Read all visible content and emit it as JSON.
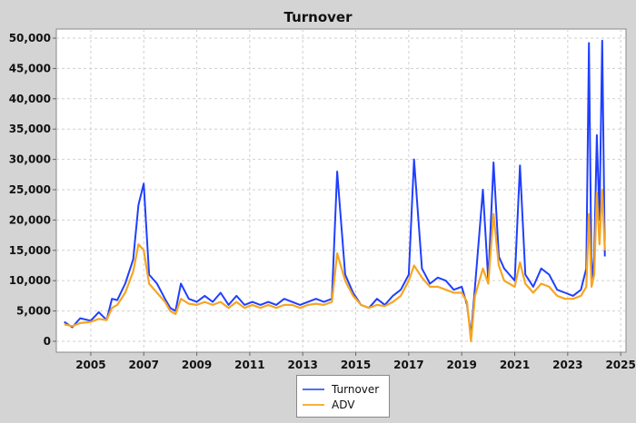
{
  "chart_data": {
    "type": "line",
    "title": "Turnover",
    "xlabel": "",
    "ylabel": "",
    "xlim": [
      2003.7,
      2025.2
    ],
    "ylim": [
      -1800,
      51500
    ],
    "grid": true,
    "legend_position": "bottom",
    "x_ticks": [
      2005,
      2007,
      2009,
      2011,
      2013,
      2015,
      2017,
      2019,
      2021,
      2023,
      2025
    ],
    "x_tick_labels": [
      "2005",
      "2007",
      "2009",
      "2011",
      "2013",
      "2015",
      "2017",
      "2019",
      "2021",
      "2023",
      "2025"
    ],
    "y_ticks": [
      0,
      5000,
      10000,
      15000,
      20000,
      25000,
      30000,
      35000,
      40000,
      45000,
      50000
    ],
    "y_tick_labels": [
      "0",
      "5,000",
      "10,000",
      "15,000",
      "20,000",
      "25,000",
      "30,000",
      "35,000",
      "40,000",
      "45,000",
      "50,000"
    ],
    "series": [
      {
        "name": "Turnover",
        "color": "#1f3fff",
        "x": [
          2004.0,
          2004.3,
          2004.6,
          2005.0,
          2005.3,
          2005.6,
          2005.8,
          2006.0,
          2006.3,
          2006.6,
          2006.8,
          2007.0,
          2007.2,
          2007.5,
          2007.8,
          2008.0,
          2008.2,
          2008.4,
          2008.7,
          2009.0,
          2009.3,
          2009.6,
          2009.9,
          2010.2,
          2010.5,
          2010.8,
          2011.1,
          2011.4,
          2011.7,
          2012.0,
          2012.3,
          2012.6,
          2012.9,
          2013.2,
          2013.5,
          2013.8,
          2014.1,
          2014.3,
          2014.6,
          2014.9,
          2015.2,
          2015.5,
          2015.8,
          2016.1,
          2016.4,
          2016.7,
          2017.0,
          2017.2,
          2017.5,
          2017.8,
          2018.1,
          2018.4,
          2018.7,
          2019.0,
          2019.2,
          2019.35,
          2019.5,
          2019.8,
          2020.0,
          2020.2,
          2020.4,
          2020.6,
          2020.8,
          2021.0,
          2021.2,
          2021.4,
          2021.7,
          2022.0,
          2022.3,
          2022.6,
          2022.9,
          2023.2,
          2023.5,
          2023.7,
          2023.8,
          2023.9,
          2024.0,
          2024.1,
          2024.2,
          2024.3,
          2024.4
        ],
        "values": [
          3200,
          2300,
          3800,
          3400,
          4800,
          3500,
          7000,
          6800,
          9500,
          13500,
          22500,
          26000,
          11000,
          9500,
          7000,
          5500,
          5000,
          9500,
          7000,
          6500,
          7500,
          6500,
          8000,
          6000,
          7500,
          6000,
          6500,
          6000,
          6500,
          6000,
          7000,
          6500,
          6000,
          6500,
          7000,
          6500,
          7000,
          28000,
          11000,
          8000,
          6000,
          5500,
          7000,
          6000,
          7500,
          8500,
          11000,
          30000,
          12000,
          9500,
          10500,
          10000,
          8500,
          9000,
          6000,
          1000,
          9000,
          25000,
          10000,
          29500,
          14000,
          12000,
          11000,
          10000,
          29000,
          11000,
          9000,
          12000,
          11000,
          8500,
          8000,
          7500,
          8500,
          12000,
          49200,
          9500,
          14000,
          34000,
          20000,
          49600,
          14000
        ]
      },
      {
        "name": "ADV",
        "color": "#f5a623",
        "x": [
          2004.0,
          2004.3,
          2004.6,
          2005.0,
          2005.3,
          2005.6,
          2005.8,
          2006.0,
          2006.3,
          2006.6,
          2006.8,
          2007.0,
          2007.2,
          2007.5,
          2007.8,
          2008.0,
          2008.2,
          2008.4,
          2008.7,
          2009.0,
          2009.3,
          2009.6,
          2009.9,
          2010.2,
          2010.5,
          2010.8,
          2011.1,
          2011.4,
          2011.7,
          2012.0,
          2012.3,
          2012.6,
          2012.9,
          2013.2,
          2013.5,
          2013.8,
          2014.1,
          2014.3,
          2014.6,
          2014.9,
          2015.2,
          2015.5,
          2015.8,
          2016.1,
          2016.4,
          2016.7,
          2017.0,
          2017.2,
          2017.5,
          2017.8,
          2018.1,
          2018.4,
          2018.7,
          2019.0,
          2019.2,
          2019.35,
          2019.5,
          2019.8,
          2020.0,
          2020.2,
          2020.4,
          2020.6,
          2020.8,
          2021.0,
          2021.2,
          2021.4,
          2021.7,
          2022.0,
          2022.3,
          2022.6,
          2022.9,
          2023.2,
          2023.5,
          2023.7,
          2023.8,
          2023.9,
          2024.0,
          2024.1,
          2024.2,
          2024.3,
          2024.4
        ],
        "values": [
          2800,
          2500,
          3000,
          3200,
          3700,
          3500,
          5500,
          6000,
          8000,
          11500,
          16000,
          15000,
          9500,
          8000,
          6500,
          5000,
          4500,
          7000,
          6200,
          6000,
          6500,
          6000,
          6500,
          5500,
          6500,
          5500,
          6000,
          5500,
          6000,
          5500,
          6000,
          6000,
          5500,
          6000,
          6200,
          6000,
          6500,
          14500,
          10000,
          7500,
          6000,
          5500,
          6000,
          5800,
          6500,
          7500,
          10000,
          12500,
          10500,
          9000,
          9000,
          8500,
          8000,
          8000,
          6500,
          0,
          7500,
          12000,
          9500,
          21000,
          12500,
          10000,
          9500,
          9000,
          13000,
          9500,
          8000,
          9500,
          9000,
          7500,
          7000,
          7000,
          7500,
          9000,
          21000,
          9000,
          11000,
          24500,
          16000,
          25000,
          15000
        ]
      }
    ]
  }
}
